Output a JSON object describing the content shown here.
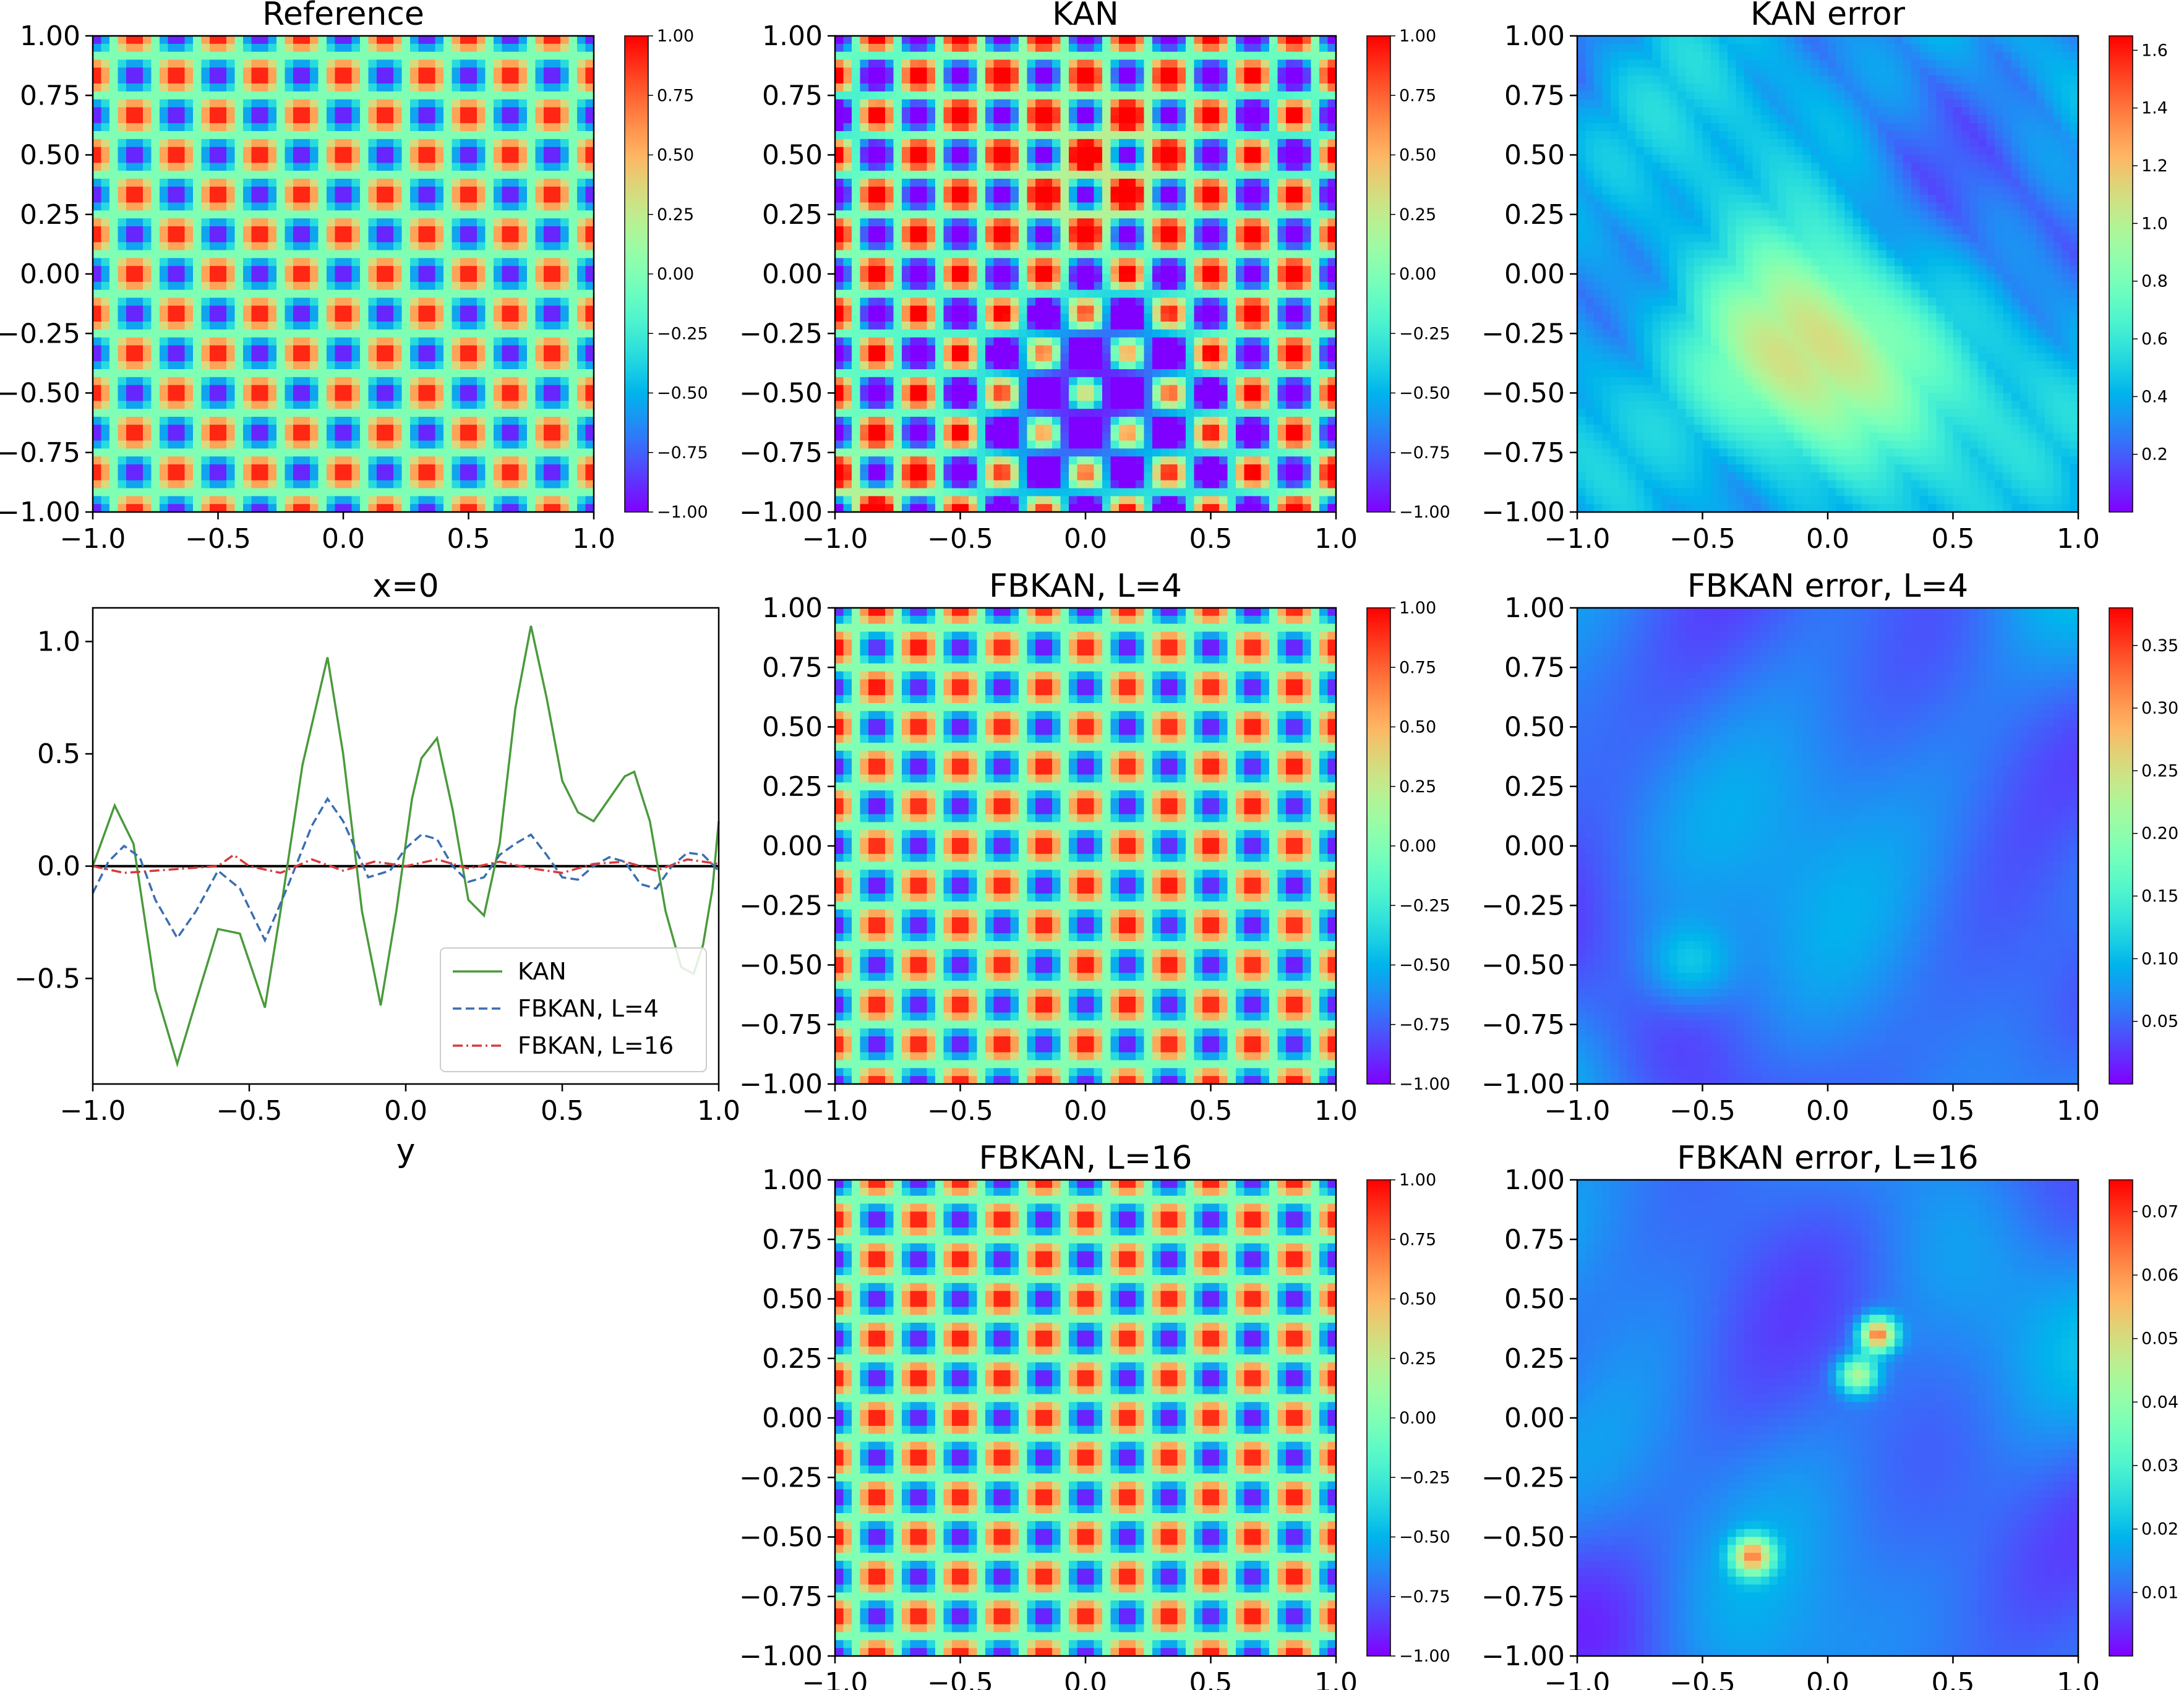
{
  "figure": {
    "colormap": "rainbow"
  },
  "chart_data": [
    {
      "type": "heatmap",
      "id": "reference",
      "title": "Reference",
      "field": "sin(k*pi*x)*sin(k*pi*y)",
      "periods": 6,
      "zlim": [
        -1,
        1
      ],
      "xlim": [
        -1,
        1
      ],
      "ylim": [
        -1,
        1
      ],
      "xticks": [
        "−1.0",
        "−0.5",
        "0.0",
        "0.5",
        "1.0"
      ],
      "yticks": [
        "1.00",
        "0.75",
        "0.50",
        "0.25",
        "0.00",
        "−0.25",
        "−0.50",
        "−0.75",
        "−1.00"
      ],
      "colorbar_ticks": [
        "1.00",
        "0.75",
        "0.50",
        "0.25",
        "0.00",
        "−0.25",
        "−0.50",
        "−0.75",
        "−1.00"
      ]
    },
    {
      "type": "heatmap",
      "id": "kan",
      "title": "KAN",
      "field": "reference plus large error, clipped",
      "zlim": [
        -1,
        1
      ],
      "xlim": [
        -1,
        1
      ],
      "ylim": [
        -1,
        1
      ],
      "xticks": [
        "−1.0",
        "−0.5",
        "0.0",
        "0.5",
        "1.0"
      ],
      "yticks": [
        "1.00",
        "0.75",
        "0.50",
        "0.25",
        "0.00",
        "−0.25",
        "−0.50",
        "−0.75",
        "−1.00"
      ],
      "colorbar_ticks": [
        "1.00",
        "0.75",
        "0.50",
        "0.25",
        "0.00",
        "−0.25",
        "−0.50",
        "−0.75",
        "−1.00"
      ]
    },
    {
      "type": "heatmap",
      "id": "kan-error",
      "title": "KAN error",
      "field": "absolute error",
      "zlim": [
        0,
        1.65
      ],
      "xlim": [
        -1,
        1
      ],
      "ylim": [
        -1,
        1
      ],
      "xticks": [
        "−1.0",
        "−0.5",
        "0.0",
        "0.5",
        "1.0"
      ],
      "yticks": [
        "1.00",
        "0.75",
        "0.50",
        "0.25",
        "0.00",
        "−0.25",
        "−0.50",
        "−0.75",
        "−1.00"
      ],
      "colorbar_ticks": [
        "1.6",
        "1.4",
        "1.2",
        "1.0",
        "0.8",
        "0.6",
        "0.4",
        "0.2"
      ],
      "colorbar_tick_values": [
        1.6,
        1.4,
        1.2,
        1.0,
        0.8,
        0.6,
        0.4,
        0.2
      ]
    },
    {
      "type": "line",
      "id": "slice",
      "title": "x=0",
      "xlabel": "y",
      "ylabel": "",
      "xlim": [
        -1,
        1
      ],
      "ylim": [
        -0.97,
        1.15
      ],
      "xticks": [
        "−1.0",
        "−0.5",
        "0.0",
        "0.5",
        "1.0"
      ],
      "yticks": [
        "1.0",
        "0.5",
        "0.0",
        "−0.5"
      ],
      "ytick_values": [
        1.0,
        0.5,
        0.0,
        -0.5
      ],
      "legend_position": "lower-right",
      "reference_line": 0.0,
      "series": [
        {
          "name": "KAN",
          "color": "#4a9a3c",
          "style": "solid",
          "x": [
            -1.0,
            -0.93,
            -0.87,
            -0.8,
            -0.73,
            -0.67,
            -0.6,
            -0.53,
            -0.45,
            -0.4,
            -0.33,
            -0.25,
            -0.2,
            -0.14,
            -0.08,
            -0.03,
            0.02,
            0.05,
            0.1,
            0.15,
            0.2,
            0.25,
            0.3,
            0.35,
            0.4,
            0.45,
            0.5,
            0.55,
            0.6,
            0.65,
            0.7,
            0.73,
            0.78,
            0.83,
            0.88,
            0.92,
            0.95,
            0.98,
            1.0
          ],
          "values": [
            0.0,
            0.27,
            0.1,
            -0.55,
            -0.88,
            -0.6,
            -0.28,
            -0.3,
            -0.63,
            -0.2,
            0.45,
            0.93,
            0.5,
            -0.2,
            -0.62,
            -0.2,
            0.3,
            0.48,
            0.57,
            0.25,
            -0.15,
            -0.22,
            0.1,
            0.7,
            1.07,
            0.75,
            0.38,
            0.24,
            0.2,
            0.3,
            0.4,
            0.42,
            0.2,
            -0.2,
            -0.45,
            -0.48,
            -0.35,
            -0.1,
            0.2
          ]
        },
        {
          "name": "FBKAN, L=4",
          "color": "#3a6eb0",
          "style": "dashed",
          "x": [
            -1.0,
            -0.95,
            -0.9,
            -0.85,
            -0.8,
            -0.73,
            -0.67,
            -0.6,
            -0.53,
            -0.45,
            -0.38,
            -0.3,
            -0.25,
            -0.2,
            -0.12,
            -0.05,
            0.0,
            0.05,
            0.1,
            0.15,
            0.2,
            0.25,
            0.3,
            0.35,
            0.4,
            0.45,
            0.5,
            0.55,
            0.6,
            0.65,
            0.7,
            0.75,
            0.8,
            0.85,
            0.9,
            0.95,
            1.0
          ],
          "values": [
            -0.12,
            0.02,
            0.09,
            0.04,
            -0.15,
            -0.32,
            -0.2,
            -0.02,
            -0.1,
            -0.33,
            -0.1,
            0.18,
            0.3,
            0.2,
            -0.05,
            -0.02,
            0.08,
            0.14,
            0.12,
            0.0,
            -0.07,
            -0.05,
            0.05,
            0.1,
            0.14,
            0.05,
            -0.05,
            -0.06,
            0.0,
            0.04,
            0.02,
            -0.08,
            -0.1,
            0.0,
            0.06,
            0.05,
            -0.02
          ]
        },
        {
          "name": "FBKAN, L=16",
          "color": "#d9393a",
          "style": "dashdot",
          "x": [
            -1.0,
            -0.9,
            -0.8,
            -0.7,
            -0.6,
            -0.55,
            -0.5,
            -0.4,
            -0.3,
            -0.2,
            -0.1,
            0.0,
            0.1,
            0.2,
            0.3,
            0.4,
            0.5,
            0.6,
            0.7,
            0.8,
            0.9,
            0.95,
            1.0
          ],
          "values": [
            0.0,
            -0.03,
            -0.02,
            -0.01,
            0.0,
            0.05,
            0.0,
            -0.03,
            0.03,
            -0.02,
            0.02,
            0.0,
            0.03,
            -0.01,
            0.02,
            -0.01,
            -0.03,
            0.01,
            0.02,
            -0.02,
            0.03,
            0.02,
            0.01
          ]
        }
      ]
    },
    {
      "type": "heatmap",
      "id": "fbkan4",
      "title": "FBKAN, L=4",
      "field": "reference plus small error",
      "zlim": [
        -1,
        1
      ],
      "xlim": [
        -1,
        1
      ],
      "ylim": [
        -1,
        1
      ],
      "xticks": [
        "−1.0",
        "−0.5",
        "0.0",
        "0.5",
        "1.0"
      ],
      "yticks": [
        "1.00",
        "0.75",
        "0.50",
        "0.25",
        "0.00",
        "−0.25",
        "−0.50",
        "−0.75",
        "−1.00"
      ],
      "colorbar_ticks": [
        "1.00",
        "0.75",
        "0.50",
        "0.25",
        "0.00",
        "−0.25",
        "−0.50",
        "−0.75",
        "−1.00"
      ]
    },
    {
      "type": "heatmap",
      "id": "fbkan4-error",
      "title": "FBKAN error, L=4",
      "field": "absolute error",
      "zlim": [
        0,
        0.38
      ],
      "xlim": [
        -1,
        1
      ],
      "ylim": [
        -1,
        1
      ],
      "xticks": [
        "−1.0",
        "−0.5",
        "0.0",
        "0.5",
        "1.0"
      ],
      "yticks": [
        "1.00",
        "0.75",
        "0.50",
        "0.25",
        "0.00",
        "−0.25",
        "−0.50",
        "−0.75",
        "−1.00"
      ],
      "colorbar_ticks": [
        "0.35",
        "0.30",
        "0.25",
        "0.20",
        "0.15",
        "0.10",
        "0.05"
      ],
      "colorbar_tick_values": [
        0.35,
        0.3,
        0.25,
        0.2,
        0.15,
        0.1,
        0.05
      ]
    },
    {
      "type": "heatmap",
      "id": "fbkan16",
      "title": "FBKAN, L=16",
      "field": "reference plus very small error",
      "zlim": [
        -1,
        1
      ],
      "xlim": [
        -1,
        1
      ],
      "ylim": [
        -1,
        1
      ],
      "xticks": [
        "−1.0",
        "−0.5",
        "0.0",
        "0.5",
        "1.0"
      ],
      "yticks": [
        "1.00",
        "0.75",
        "0.50",
        "0.25",
        "0.00",
        "−0.25",
        "−0.50",
        "−0.75",
        "−1.00"
      ],
      "colorbar_ticks": [
        "1.00",
        "0.75",
        "0.50",
        "0.25",
        "0.00",
        "−0.25",
        "−0.50",
        "−0.75",
        "−1.00"
      ]
    },
    {
      "type": "heatmap",
      "id": "fbkan16-error",
      "title": "FBKAN error, L=16",
      "field": "absolute error",
      "zlim": [
        0,
        0.075
      ],
      "xlim": [
        -1,
        1
      ],
      "ylim": [
        -1,
        1
      ],
      "xticks": [
        "−1.0",
        "−0.5",
        "0.0",
        "0.5",
        "1.0"
      ],
      "yticks": [
        "1.00",
        "0.75",
        "0.50",
        "0.25",
        "0.00",
        "−0.25",
        "−0.50",
        "−0.75",
        "−1.00"
      ],
      "colorbar_ticks": [
        "0.07",
        "0.06",
        "0.05",
        "0.04",
        "0.03",
        "0.02",
        "0.01"
      ],
      "colorbar_tick_values": [
        0.07,
        0.06,
        0.05,
        0.04,
        0.03,
        0.02,
        0.01
      ]
    }
  ]
}
